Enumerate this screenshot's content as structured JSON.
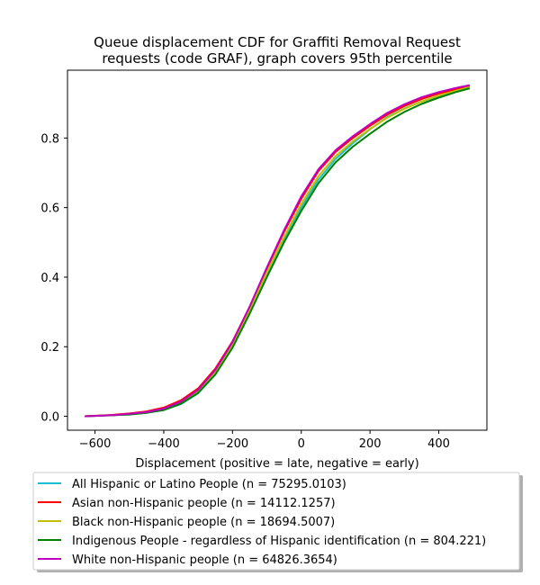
{
  "chart_data": {
    "type": "line",
    "title_lines": [
      "Queue displacement CDF for Graffiti Removal Request",
      "requests (code GRAF), graph covers 95th percentile"
    ],
    "xlabel": "Displacement (positive = late, negative = early)",
    "ylabel": "",
    "xlim": [
      -680,
      540
    ],
    "ylim": [
      -0.04,
      0.995
    ],
    "x_ticks": [
      -600,
      -400,
      -200,
      0,
      200,
      400
    ],
    "y_ticks": [
      0.0,
      0.2,
      0.4,
      0.6,
      0.8
    ],
    "x_tick_labels": [
      "−600",
      "−400",
      "−200",
      "0",
      "200",
      "400"
    ],
    "y_tick_labels": [
      "0.0",
      "0.2",
      "0.4",
      "0.6",
      "0.8"
    ],
    "grid": false,
    "legend_position": "below plot",
    "series": [
      {
        "name": "All Hispanic or Latino People (n = 75295.0103)",
        "color": "#17becf",
        "x": [
          -630,
          -550,
          -500,
          -450,
          -400,
          -350,
          -300,
          -250,
          -200,
          -150,
          -100,
          -50,
          0,
          50,
          100,
          150,
          200,
          250,
          300,
          350,
          400,
          450,
          490
        ],
        "y": [
          0.0,
          0.003,
          0.006,
          0.01,
          0.018,
          0.035,
          0.066,
          0.12,
          0.2,
          0.3,
          0.41,
          0.51,
          0.6,
          0.68,
          0.74,
          0.785,
          0.825,
          0.86,
          0.885,
          0.905,
          0.92,
          0.935,
          0.946
        ]
      },
      {
        "name": "Asian non-Hispanic people (n = 14112.1257)",
        "color": "#ff0000",
        "x": [
          -630,
          -550,
          -500,
          -450,
          -400,
          -350,
          -300,
          -250,
          -200,
          -150,
          -100,
          -50,
          0,
          50,
          100,
          150,
          200,
          250,
          300,
          350,
          400,
          450,
          490
        ],
        "y": [
          0.0,
          0.004,
          0.008,
          0.014,
          0.025,
          0.046,
          0.08,
          0.137,
          0.215,
          0.315,
          0.425,
          0.53,
          0.625,
          0.705,
          0.76,
          0.8,
          0.835,
          0.867,
          0.892,
          0.912,
          0.928,
          0.94,
          0.948
        ]
      },
      {
        "name": "Black non-Hispanic people (n = 18694.5007)",
        "color": "#bfbf00",
        "x": [
          -630,
          -550,
          -500,
          -450,
          -400,
          -350,
          -300,
          -250,
          -200,
          -150,
          -100,
          -50,
          0,
          50,
          100,
          150,
          200,
          250,
          300,
          350,
          400,
          450,
          490
        ],
        "y": [
          0.0,
          0.003,
          0.006,
          0.011,
          0.02,
          0.039,
          0.072,
          0.127,
          0.205,
          0.305,
          0.413,
          0.515,
          0.61,
          0.69,
          0.748,
          0.79,
          0.826,
          0.858,
          0.884,
          0.905,
          0.922,
          0.936,
          0.946
        ]
      },
      {
        "name": "Indigenous People - regardless of Hispanic identification (n = 804.221)",
        "color": "#008000",
        "x": [
          -630,
          -550,
          -500,
          -450,
          -400,
          -350,
          -300,
          -250,
          -200,
          -150,
          -100,
          -50,
          0,
          50,
          100,
          150,
          200,
          250,
          300,
          350,
          400,
          450,
          490
        ],
        "y": [
          0.0,
          0.003,
          0.005,
          0.01,
          0.018,
          0.036,
          0.067,
          0.12,
          0.197,
          0.295,
          0.4,
          0.5,
          0.59,
          0.67,
          0.73,
          0.775,
          0.812,
          0.847,
          0.875,
          0.898,
          0.916,
          0.932,
          0.943
        ]
      },
      {
        "name": "White non-Hispanic people (n = 64826.3654)",
        "color": "#bf00bf",
        "x": [
          -630,
          -550,
          -500,
          -450,
          -400,
          -350,
          -300,
          -250,
          -200,
          -150,
          -100,
          -50,
          0,
          50,
          100,
          150,
          200,
          250,
          300,
          350,
          400,
          450,
          490
        ],
        "y": [
          0.0,
          0.003,
          0.007,
          0.012,
          0.022,
          0.042,
          0.076,
          0.133,
          0.213,
          0.315,
          0.428,
          0.535,
          0.632,
          0.71,
          0.765,
          0.805,
          0.84,
          0.872,
          0.897,
          0.917,
          0.932,
          0.944,
          0.952
        ]
      }
    ]
  }
}
